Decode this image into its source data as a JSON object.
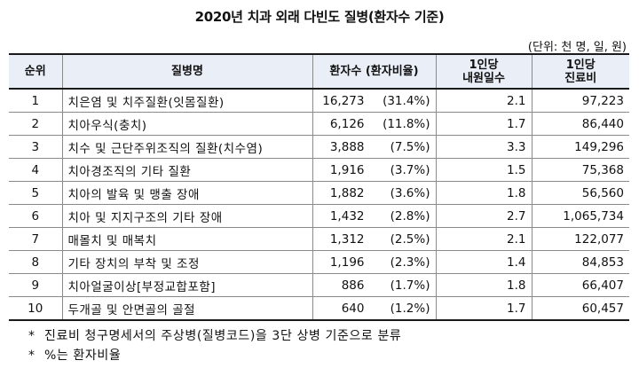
{
  "title": "2020년 치과 외래 다빈도 질병(환자수 기준)",
  "unit": "(단위: 천 명, 일, 원)",
  "table": {
    "headers": {
      "rank": "순위",
      "disease": "질병명",
      "patients": "환자수 (환자비율)",
      "days_line1": "1인당",
      "days_line2": "내원일수",
      "cost_line1": "1인당",
      "cost_line2": "진료비"
    },
    "rows": [
      {
        "rank": "1",
        "disease": "치은염 및 치주질환(잇몸질환)",
        "patients": "16,273",
        "share": "(31.4%)",
        "days": "2.1",
        "cost": "97,223"
      },
      {
        "rank": "2",
        "disease": "치아우식(충치)",
        "patients": "6,126",
        "share": "(11.8%)",
        "days": "1.7",
        "cost": "86,440"
      },
      {
        "rank": "3",
        "disease": "치수 및 근단주위조직의 질환(치수염)",
        "patients": "3,888",
        "share": "(7.5%)",
        "days": "3.3",
        "cost": "149,296"
      },
      {
        "rank": "4",
        "disease": "치아경조직의 기타 질환",
        "patients": "1,916",
        "share": "(3.7%)",
        "days": "1.5",
        "cost": "75,368"
      },
      {
        "rank": "5",
        "disease": "치아의 발육 및 맹출 장애",
        "patients": "1,882",
        "share": "(3.6%)",
        "days": "1.8",
        "cost": "56,560"
      },
      {
        "rank": "6",
        "disease": "치아 및 지지구조의 기타 장애",
        "patients": "1,432",
        "share": "(2.8%)",
        "days": "2.7",
        "cost": "1,065,734"
      },
      {
        "rank": "7",
        "disease": "매몰치 및 매복치",
        "patients": "1,312",
        "share": "(2.5%)",
        "days": "2.1",
        "cost": "122,077"
      },
      {
        "rank": "8",
        "disease": "기타 장치의 부착 및 조정",
        "patients": "1,196",
        "share": "(2.3%)",
        "days": "1.4",
        "cost": "84,853"
      },
      {
        "rank": "9",
        "disease": "치아얼굴이상[부정교합포함]",
        "patients": "886",
        "share": "(1.7%)",
        "days": "1.8",
        "cost": "66,407"
      },
      {
        "rank": "10",
        "disease": "두개골 및 안면골의 골절",
        "patients": "640",
        "share": "(1.2%)",
        "days": "1.7",
        "cost": "60,457"
      }
    ]
  },
  "notes": [
    {
      "marker": "*",
      "text": "진료비 청구명세서의 주상병(질병코드)을 3단 상병 기준으로 분류"
    },
    {
      "marker": "*",
      "text": "%는 환자비율"
    }
  ]
}
